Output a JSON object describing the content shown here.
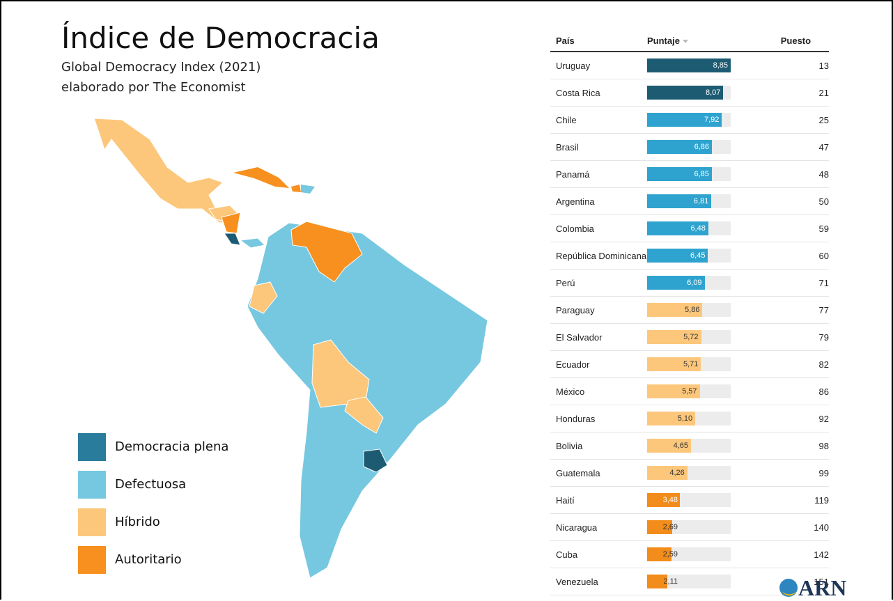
{
  "header": {
    "title": "Índice de Democracia",
    "subtitle_lines": [
      "Global Democracy Index (2021)",
      "elaborado por The Economist"
    ]
  },
  "legend": [
    {
      "label": "Democracia plena",
      "color": "#2a7c9c"
    },
    {
      "label": "Defectuosa",
      "color": "#76c8e0"
    },
    {
      "label": "Híbrido",
      "color": "#fcc77b"
    },
    {
      "label": "Autoritario",
      "color": "#f7901e"
    }
  ],
  "table": {
    "columns": [
      "País",
      "Puntaje",
      "Puesto"
    ],
    "rows": [
      {
        "country": "Uruguay",
        "score": 8.85,
        "score_label": "8,85",
        "rank": 13,
        "color": "#1d5b73"
      },
      {
        "country": "Costa Rica",
        "score": 8.07,
        "score_label": "8,07",
        "rank": 21,
        "color": "#1d5b73"
      },
      {
        "country": "Chile",
        "score": 7.92,
        "score_label": "7,92",
        "rank": 25,
        "color": "#2ea3cf"
      },
      {
        "country": "Brasil",
        "score": 6.86,
        "score_label": "6,86",
        "rank": 47,
        "color": "#2ea3cf"
      },
      {
        "country": "Panamá",
        "score": 6.85,
        "score_label": "6,85",
        "rank": 48,
        "color": "#2ea3cf"
      },
      {
        "country": "Argentina",
        "score": 6.81,
        "score_label": "6,81",
        "rank": 50,
        "color": "#2ea3cf"
      },
      {
        "country": "Colombia",
        "score": 6.48,
        "score_label": "6,48",
        "rank": 59,
        "color": "#2ea3cf"
      },
      {
        "country": "República Dominicana",
        "score": 6.45,
        "score_label": "6,45",
        "rank": 60,
        "color": "#2ea3cf"
      },
      {
        "country": "Perú",
        "score": 6.09,
        "score_label": "6,09",
        "rank": 71,
        "color": "#2ea3cf"
      },
      {
        "country": "Paraguay",
        "score": 5.86,
        "score_label": "5,86",
        "rank": 77,
        "color": "#fcc77b"
      },
      {
        "country": "El Salvador",
        "score": 5.72,
        "score_label": "5,72",
        "rank": 79,
        "color": "#fcc77b"
      },
      {
        "country": "Ecuador",
        "score": 5.71,
        "score_label": "5,71",
        "rank": 82,
        "color": "#fcc77b"
      },
      {
        "country": "México",
        "score": 5.57,
        "score_label": "5,57",
        "rank": 86,
        "color": "#fcc77b"
      },
      {
        "country": "Honduras",
        "score": 5.1,
        "score_label": "5,10",
        "rank": 92,
        "color": "#fcc77b"
      },
      {
        "country": "Bolivia",
        "score": 4.65,
        "score_label": "4,65",
        "rank": 98,
        "color": "#fcc77b"
      },
      {
        "country": "Guatemala",
        "score": 4.26,
        "score_label": "4,26",
        "rank": 99,
        "color": "#fcc77b"
      },
      {
        "country": "Haití",
        "score": 3.48,
        "score_label": "3,48",
        "rank": 119,
        "color": "#f28c1b"
      },
      {
        "country": "Nicaragua",
        "score": 2.69,
        "score_label": "2,69",
        "rank": 140,
        "color": "#f28c1b"
      },
      {
        "country": "Cuba",
        "score": 2.59,
        "score_label": "2,59",
        "rank": 142,
        "color": "#f28c1b"
      },
      {
        "country": "Venezuela",
        "score": 2.11,
        "score_label": "2,11",
        "rank": 151,
        "color": "#f28c1b"
      }
    ]
  },
  "logo": "ARN"
}
